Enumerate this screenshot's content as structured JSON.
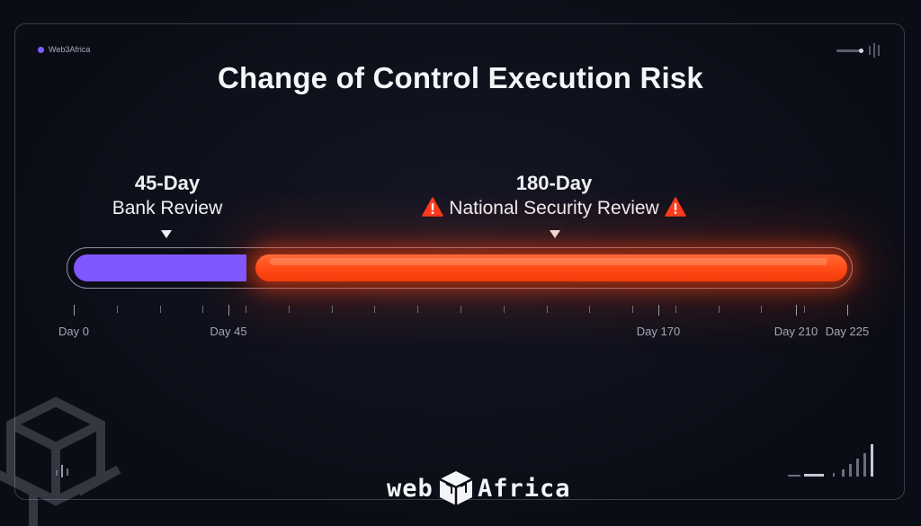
{
  "brand": {
    "small_label": "Web3Africa",
    "logo_left": "web",
    "logo_right": "Africa",
    "accent": "#7f5cff"
  },
  "title": "Change of Control Execution Risk",
  "phases": [
    {
      "id": "bank",
      "days_label": "45-Day",
      "name": "Bank Review",
      "start_day": 0,
      "end_day": 45,
      "color": "#8157ff",
      "warning": false
    },
    {
      "id": "national",
      "days_label": "180-Day",
      "name": "National Security Review",
      "start_day": 45,
      "end_day": 225,
      "color": "#ff4a14",
      "warning": true
    }
  ],
  "axis": {
    "min_day": 0,
    "max_day": 225,
    "labels": [
      {
        "day": 0,
        "text": "Day 0"
      },
      {
        "day": 45,
        "text": "Day 45"
      },
      {
        "day": 170,
        "text": "Day 170"
      },
      {
        "day": 210,
        "text": "Day 210"
      },
      {
        "day": 225,
        "text": "Day 225"
      }
    ]
  },
  "icons": {
    "warning": "warning-triangle-icon",
    "marker": "down-triangle-icon"
  }
}
